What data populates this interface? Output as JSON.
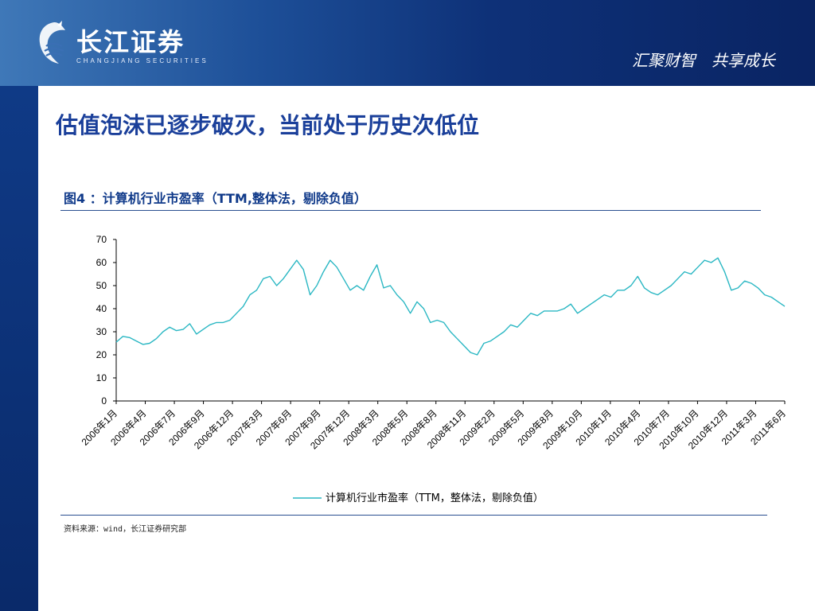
{
  "header": {
    "logo_cn": "长江证券",
    "logo_en": "CHANGJIANG SECURITIES",
    "slogan": "汇聚财智　共享成长"
  },
  "slide": {
    "title": "估值泡沫已逐步破灭，当前处于历史次低位",
    "figure_caption": "图4 ：计算机行业市盈率（TTM,整体法，剔除负值）",
    "source": "资料来源：wind，长江证券研究部"
  },
  "colors": {
    "header_dark": "#0a2463",
    "title_blue": "#1a3f9a",
    "series_line": "#2ab7c3",
    "rule": "#2a4f90"
  },
  "chart_data": {
    "type": "line",
    "ylim": [
      0,
      70
    ],
    "yticks": [
      "0",
      "10",
      "20",
      "30",
      "40",
      "50",
      "60",
      "70"
    ],
    "x_tick_labels": [
      "2006年1月",
      "2006年4月",
      "2006年7月",
      "2006年9月",
      "2006年12月",
      "2007年3月",
      "2007年6月",
      "2007年9月",
      "2007年12月",
      "2008年3月",
      "2008年5月",
      "2008年8月",
      "2008年11月",
      "2009年2月",
      "2009年5月",
      "2009年8月",
      "2009年10月",
      "2010年1月",
      "2010年4月",
      "2010年7月",
      "2010年10月",
      "2010年12月",
      "2011年3月",
      "2011年6月"
    ],
    "legend": "計算機行業市盈率（TTM，整体法，剔除负值）",
    "series": [
      {
        "name": "计算机行业市盈率（TTM，整体法，剔除负值）",
        "values": [
          25.5,
          28,
          27.5,
          26,
          24.5,
          25,
          27,
          30,
          32,
          30.5,
          31,
          33.5,
          29,
          31,
          33,
          34,
          34,
          35,
          38,
          41,
          46,
          48,
          53,
          54,
          50,
          53,
          57,
          61,
          57,
          46,
          50,
          56,
          61,
          58,
          53,
          48,
          50,
          48,
          54,
          59,
          49,
          50,
          46,
          43,
          38,
          43,
          40,
          34,
          35,
          34,
          30,
          27,
          24,
          21,
          20,
          25,
          26,
          28,
          30,
          33,
          32,
          35,
          38,
          37,
          39,
          39,
          39,
          40,
          42,
          38,
          40,
          42,
          44,
          46,
          45,
          48,
          48,
          50,
          54,
          49,
          47,
          46,
          48,
          50,
          53,
          56,
          55,
          58,
          61,
          60,
          62,
          56,
          48,
          49,
          52,
          51,
          49,
          46,
          45,
          43,
          41
        ]
      }
    ]
  }
}
